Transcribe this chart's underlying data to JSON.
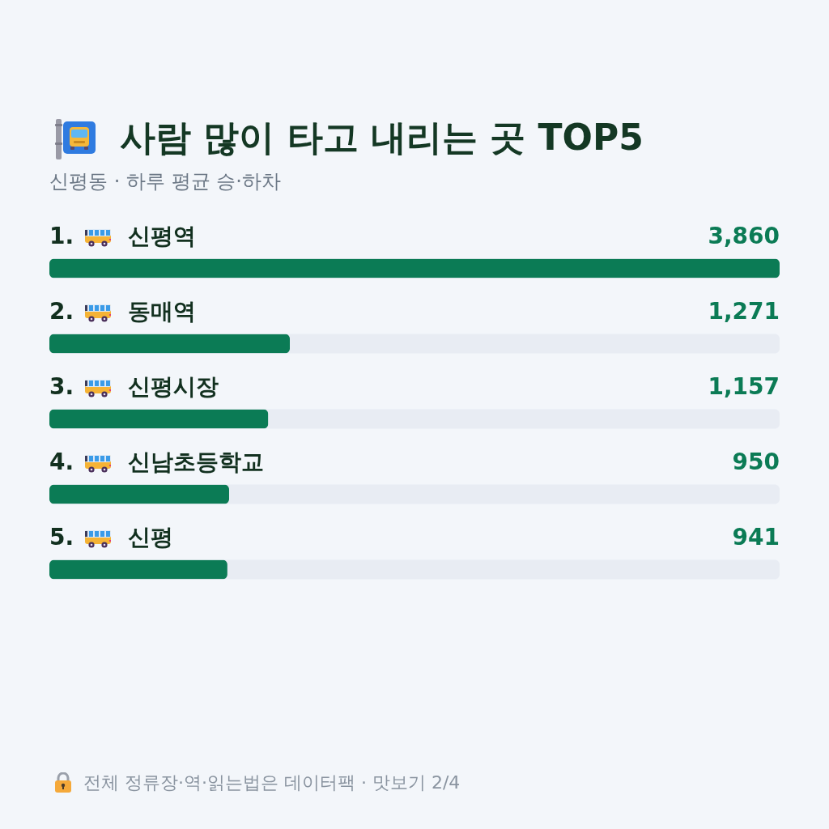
{
  "chart_data": {
    "type": "bar",
    "orientation": "horizontal",
    "title": "사람 많이 타고 내리는 곳 TOP5",
    "subtitle": "신평동 · 하루 평균 승·하차",
    "categories": [
      "1. 신평역",
      "2. 동매역",
      "3. 신평시장",
      "4. 신남초등학교",
      "5. 신평"
    ],
    "values": [
      3860,
      1271,
      1157,
      950,
      941
    ],
    "value_labels": [
      "3,860",
      "1,271",
      "1,157",
      "950",
      "941"
    ],
    "color": "#0b7b55",
    "xlim": [
      0,
      3860
    ],
    "tick_labels": false,
    "annotations": [
      "전체 정류장·역·읽는법은 데이터팩 · 맛보기 2/4"
    ]
  }
}
